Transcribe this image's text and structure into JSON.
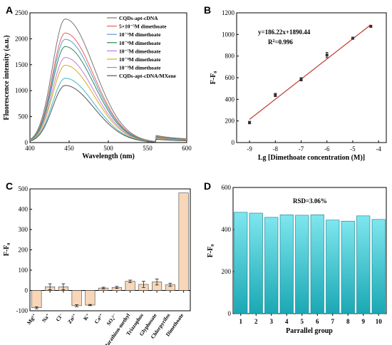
{
  "chart_data": [
    {
      "type": "line",
      "panel_label": "A",
      "xlabel": "Wavelength (nm)",
      "ylabel": "Fluorescence intensity (a.u.)",
      "xlim": [
        400,
        600
      ],
      "ylim": [
        0,
        2500
      ],
      "x_ticks": [
        "400",
        "450",
        "500",
        "550",
        "600"
      ],
      "y_ticks": [
        "0",
        "500",
        "1000",
        "1500",
        "2000",
        "2500"
      ],
      "legend_position": "top-right",
      "peak_x": 445,
      "series": [
        {
          "name": "CQDs-apt-cDNA",
          "color": "#777777",
          "peak": 2380
        },
        {
          "name": "5×10⁻⁵M dimethoate",
          "color": "#e8635a",
          "peak": 2110
        },
        {
          "name": "10⁻⁵M dimethoate",
          "color": "#5b9bd5",
          "peak": 1990
        },
        {
          "name": "10⁻⁶M dimethoate",
          "color": "#2e8b57",
          "peak": 1850
        },
        {
          "name": "10⁻⁷M dimethoate",
          "color": "#c77dd8",
          "peak": 1640
        },
        {
          "name": "10⁻⁸M dimethoate",
          "color": "#d4ac20",
          "peak": 1490
        },
        {
          "name": "10⁻⁹M dimethoate",
          "color": "#3fb7c7",
          "peak": 1240
        },
        {
          "name": "CQDs-apt-cDNA/MXene",
          "color": "#555555",
          "peak": 1100
        }
      ]
    },
    {
      "type": "scatter",
      "panel_label": "B",
      "xlabel": "Lg [Dimethoate concentration (M)]",
      "ylabel": "F-F₀",
      "xlim": [
        -9.5,
        -3.7
      ],
      "ylim": [
        0,
        1200
      ],
      "x_ticks": [
        "-9",
        "-8",
        "-7",
        "-6",
        "-5",
        "-4"
      ],
      "y_ticks": [
        "0",
        "200",
        "400",
        "600",
        "800",
        "1000",
        "1200"
      ],
      "equation": "y=186.22x+1890.44",
      "r2_label": "R",
      "r2_sup": "2",
      "r2_value": "=0.996",
      "fit": {
        "slope": 186.22,
        "intercept": 1890.44,
        "x_start": -9,
        "x_end": -4.3
      },
      "x": [
        -9,
        -8,
        -7,
        -6,
        -5,
        -4.3
      ],
      "y": [
        185,
        440,
        585,
        810,
        965,
        1075
      ],
      "errors": [
        12,
        15,
        15,
        25,
        10,
        10
      ],
      "line_color": "#c0392b"
    },
    {
      "type": "bar",
      "panel_label": "C",
      "ylabel": "F-F₀",
      "ylim": [
        -100,
        500
      ],
      "y_ticks": [
        "-100",
        "0",
        "100",
        "200",
        "300",
        "400",
        "500"
      ],
      "categories": [
        "Mg²⁺",
        "Na⁺",
        "Cl⁻",
        "Zn²⁺",
        "K⁺",
        "Ca²⁺",
        "SO₄²⁻",
        "Parathion-methyl",
        "Triazophos",
        "Glyphosate",
        "Chlorpyrifos",
        "Dimethoate"
      ],
      "values": [
        -85,
        18,
        18,
        -75,
        -72,
        12,
        15,
        45,
        30,
        42,
        28,
        480
      ],
      "errors": [
        5,
        15,
        15,
        5,
        3,
        4,
        5,
        6,
        15,
        15,
        8,
        0
      ],
      "bar_color": "#f8d7b8",
      "edge_color": "#444444"
    },
    {
      "type": "bar",
      "panel_label": "D",
      "xlabel": "Parrallel group",
      "ylabel": "F-F₀",
      "ylim": [
        0,
        600
      ],
      "y_ticks": [
        "0",
        "200",
        "400",
        "600"
      ],
      "categories": [
        "1",
        "2",
        "3",
        "4",
        "5",
        "6",
        "7",
        "8",
        "9",
        "10"
      ],
      "values": [
        482,
        478,
        458,
        470,
        468,
        470,
        445,
        440,
        465,
        448
      ],
      "annotation": "RSD=3.06%",
      "bar_color_top": "#7fe6ee",
      "bar_color_bottom": "#1aa8b4"
    }
  ]
}
